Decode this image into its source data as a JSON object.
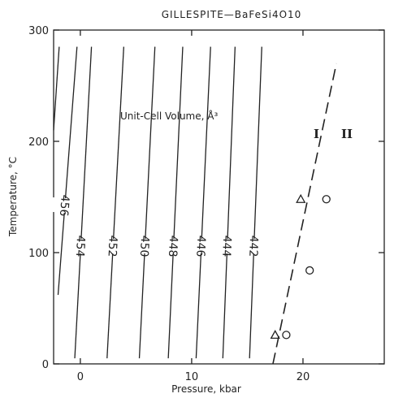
{
  "chart_data": {
    "type": "line",
    "title": "GILLESPITE—BaFeSi4O10",
    "xlabel": "Pressure, kbar",
    "ylabel": "Temperature, °C",
    "xlim": [
      -2.4,
      27.3
    ],
    "ylim": [
      0,
      300
    ],
    "xticks": [
      0,
      10,
      20
    ],
    "yticks": [
      0,
      100,
      200,
      300
    ],
    "annotation": "Unit-Cell Volume, Å³",
    "series": [
      {
        "name": "456",
        "points": [
          [
            -2.0,
            62
          ],
          [
            -0.3,
            285
          ]
        ]
      },
      {
        "name": "454",
        "points": [
          [
            -0.5,
            5
          ],
          [
            1.0,
            285
          ]
        ]
      },
      {
        "name": "452",
        "points": [
          [
            2.4,
            5
          ],
          [
            3.9,
            285
          ]
        ]
      },
      {
        "name": "450",
        "points": [
          [
            5.3,
            5
          ],
          [
            6.7,
            285
          ]
        ]
      },
      {
        "name": "448",
        "points": [
          [
            7.9,
            5
          ],
          [
            9.2,
            285
          ]
        ]
      },
      {
        "name": "446",
        "points": [
          [
            10.4,
            5
          ],
          [
            11.7,
            285
          ]
        ]
      },
      {
        "name": "444",
        "points": [
          [
            12.8,
            5
          ],
          [
            13.9,
            285
          ]
        ]
      },
      {
        "name": "442",
        "points": [
          [
            15.2,
            5
          ],
          [
            16.3,
            285
          ]
        ]
      }
    ],
    "partial_contour": {
      "points": [
        [
          -2.4,
          210
        ],
        [
          -1.9,
          285
        ]
      ]
    },
    "phase_boundary": {
      "style": "dashed",
      "points": [
        [
          17.3,
          0
        ],
        [
          23.0,
          270
        ]
      ]
    },
    "phase_labels": [
      "I",
      "II"
    ],
    "data_points": [
      {
        "marker": "triangle",
        "x": 19.8,
        "y": 148
      },
      {
        "marker": "circle",
        "x": 22.1,
        "y": 148
      },
      {
        "marker": "circle",
        "x": 20.6,
        "y": 84
      },
      {
        "marker": "triangle",
        "x": 17.5,
        "y": 26
      },
      {
        "marker": "circle",
        "x": 18.5,
        "y": 26
      }
    ],
    "grid": false
  }
}
